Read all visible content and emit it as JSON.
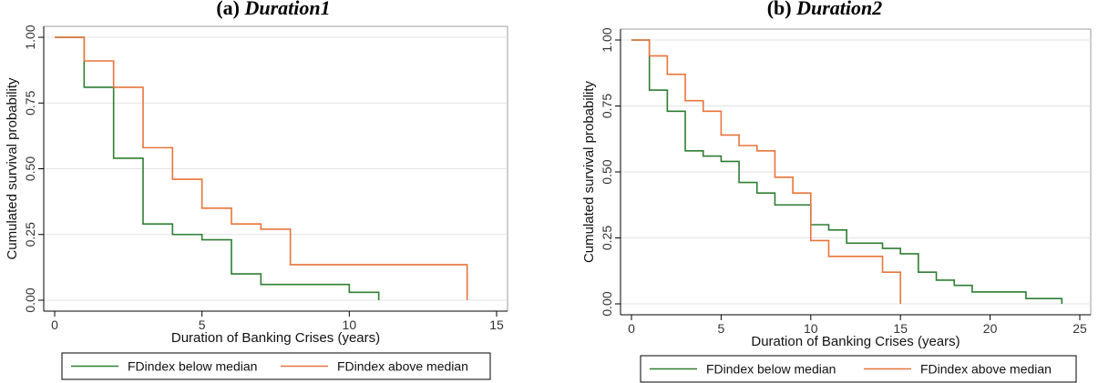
{
  "panels": [
    {
      "title_label": "(a)",
      "title_name": "Duration1",
      "chart_data": {
        "type": "line",
        "step": true,
        "xlabel": "Duration of Banking Crises (years)",
        "ylabel": "Cumulated survival probability",
        "xlim": [
          0,
          15
        ],
        "ylim": [
          0,
          1
        ],
        "xticks": [
          0,
          5,
          10,
          15
        ],
        "yticks": [
          0,
          0.25,
          0.5,
          0.75,
          1
        ],
        "ytick_labels": [
          "0.00",
          "0.25",
          "0.50",
          "0.75",
          "1.00"
        ],
        "grid": true,
        "legend_position": "bottom",
        "series": [
          {
            "name": "FDindex below median",
            "color": "#2e7d32",
            "x": [
              0,
              1,
              2,
              3,
              4,
              5,
              6,
              7,
              10,
              11
            ],
            "y": [
              1.0,
              0.81,
              0.54,
              0.29,
              0.25,
              0.23,
              0.1,
              0.06,
              0.03,
              0.0
            ]
          },
          {
            "name": "FDindex above median",
            "color": "#e8743b",
            "x": [
              0,
              1,
              2,
              3,
              4,
              5,
              6,
              7,
              8,
              14
            ],
            "y": [
              1.0,
              0.91,
              0.81,
              0.58,
              0.46,
              0.35,
              0.29,
              0.27,
              0.135,
              0.0
            ]
          }
        ]
      }
    },
    {
      "title_label": "(b)",
      "title_name": "Duration2",
      "chart_data": {
        "type": "line",
        "step": true,
        "xlabel": "Duration of Banking Crises (years)",
        "ylabel": "Cumulated survival probability",
        "xlim": [
          0,
          25
        ],
        "ylim": [
          0,
          1
        ],
        "xticks": [
          0,
          5,
          10,
          15,
          20,
          25
        ],
        "yticks": [
          0,
          0.25,
          0.5,
          0.75,
          1
        ],
        "ytick_labels": [
          "0.00",
          "0.25",
          "0.50",
          "0.75",
          "1.00"
        ],
        "grid": true,
        "legend_position": "bottom",
        "series": [
          {
            "name": "FDindex below median",
            "color": "#2e7d32",
            "x": [
              0,
              1,
              2,
              3,
              4,
              5,
              6,
              7,
              8,
              10,
              11,
              12,
              14,
              15,
              16,
              17,
              18,
              19,
              22,
              24
            ],
            "y": [
              1.0,
              0.81,
              0.73,
              0.58,
              0.56,
              0.54,
              0.46,
              0.42,
              0.375,
              0.3,
              0.28,
              0.23,
              0.21,
              0.19,
              0.12,
              0.09,
              0.07,
              0.045,
              0.02,
              0.0
            ]
          },
          {
            "name": "FDindex above median",
            "color": "#e8743b",
            "x": [
              0,
              1,
              2,
              3,
              4,
              5,
              6,
              7,
              8,
              9,
              10,
              11,
              14,
              15
            ],
            "y": [
              1.0,
              0.94,
              0.87,
              0.77,
              0.73,
              0.64,
              0.6,
              0.58,
              0.48,
              0.42,
              0.24,
              0.18,
              0.12,
              0.0
            ]
          }
        ]
      }
    }
  ]
}
